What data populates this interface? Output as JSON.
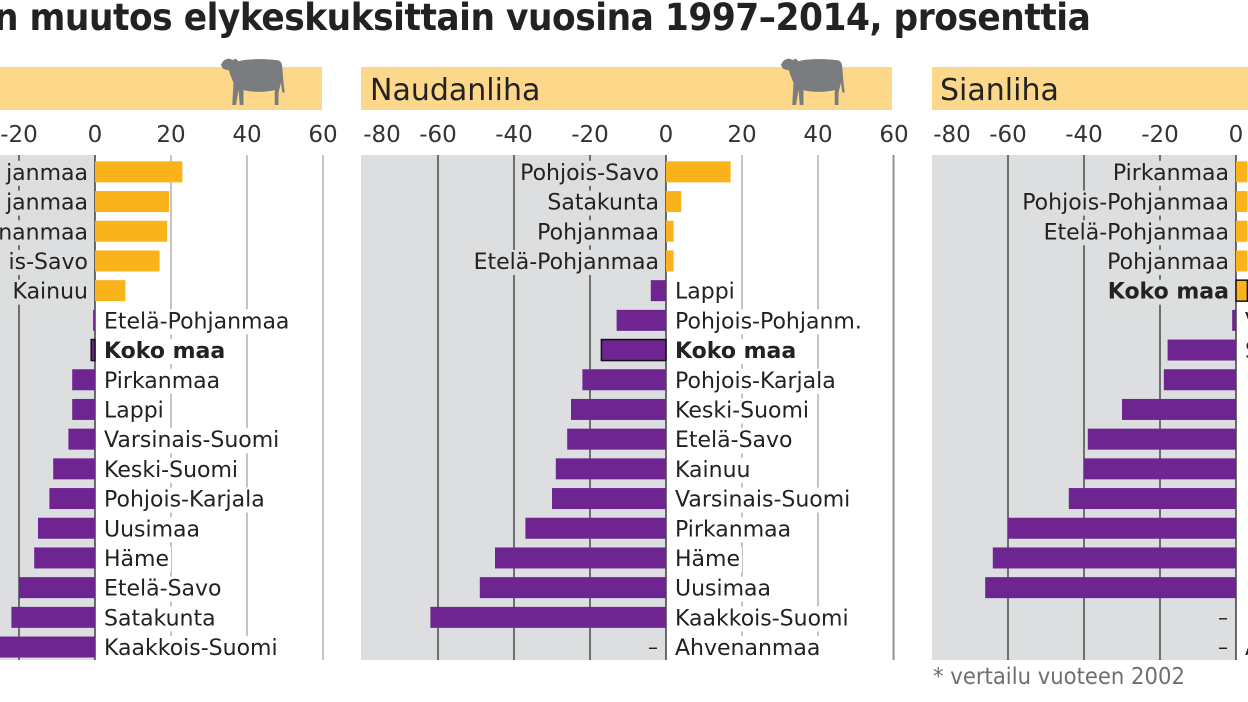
{
  "title": "n muutos elykeskuksittain vuosina 1997–2014, prosenttia",
  "footnote": "* vertailu vuoteen 2002",
  "colors": {
    "positive": "#fbb31c",
    "negative": "#6e2591",
    "panel_gray": "#dcdedf",
    "header_band": "#fdd88b",
    "animal_icon": "#7a7d80",
    "gridline": "#333333",
    "text": "#222222"
  },
  "chart_data": [
    {
      "type": "bar",
      "orientation": "horizontal",
      "title": "",
      "icon": "cow-icon",
      "xlabel": "",
      "ylabel": "",
      "xlim": [
        -25,
        60
      ],
      "ticks": [
        -20,
        0,
        20,
        40,
        60
      ],
      "tick_labels": [
        "-20",
        "0",
        "20",
        "40",
        "60"
      ],
      "grid": true,
      "categories": [
        "…janmaa",
        "…janmaa",
        "…nanmaa",
        "…is-Savo",
        "Kainuu",
        "Etelä-Pohjanmaa",
        "Koko maa",
        "Pirkanmaa",
        "Lappi",
        "Varsinais-Suomi",
        "Keski-Suomi",
        "Pohjois-Karjala",
        "Uusimaa",
        "Häme",
        "Etelä-Savo",
        "Satakunta",
        "Kaakkois-Suomi"
      ],
      "labels_visible": [
        "janmaa",
        "janmaa",
        "nanmaa",
        "is-Savo",
        "Kainuu",
        "Etelä-Pohjanmaa",
        "Koko maa",
        "Pirkanmaa",
        "Lappi",
        "Varsinais-Suomi",
        "Keski-Suomi",
        "Pohjois-Karjala",
        "Uusimaa",
        "Häme",
        "Etelä-Savo",
        "Satakunta",
        "Kaakkois-Suomi"
      ],
      "values": [
        23,
        19.5,
        19,
        17,
        8,
        -0.5,
        -1,
        -6,
        -6,
        -7,
        -11,
        -12,
        -15,
        -16,
        -20,
        -22,
        -26
      ],
      "highlight": "Koko maa"
    },
    {
      "type": "bar",
      "orientation": "horizontal",
      "title": "Naudanliha",
      "icon": "bull-icon",
      "xlabel": "",
      "ylabel": "",
      "xlim": [
        -80,
        60
      ],
      "ticks": [
        -80,
        -60,
        -40,
        -20,
        0,
        20,
        40,
        60
      ],
      "tick_labels": [
        "-80",
        "-60",
        "-40",
        "-20",
        "0",
        "20",
        "40",
        "60"
      ],
      "grid": true,
      "categories": [
        "Pohjois-Savo",
        "Satakunta",
        "Pohjanmaa",
        "Etelä-Pohjanmaa",
        "Lappi",
        "Pohjois-Pohjanm.",
        "Koko maa",
        "Pohjois-Karjala",
        "Keski-Suomi",
        "Etelä-Savo",
        "Kainuu",
        "Varsinais-Suomi",
        "Pirkanmaa",
        "Häme",
        "Uusimaa",
        "Kaakkois-Suomi",
        "Ahvenanmaa"
      ],
      "labels_visible": [
        "Pohjois-Savo",
        "Satakunta",
        "Pohjanmaa",
        "Etelä-Pohjanmaa",
        "Lappi",
        "Pohjois-Pohjanm.",
        "Koko maa",
        "Pohjois-Karjala",
        "Keski-Suomi",
        "Etelä-Savo",
        "Kainuu",
        "Varsinais-Suomi",
        "Pirkanmaa",
        "Häme",
        "Uusimaa",
        "Kaakkois-Suomi",
        "Ahvenanmaa"
      ],
      "values": [
        17,
        4,
        2,
        2,
        -4,
        -13,
        -17,
        -22,
        -25,
        -26,
        -29,
        -30,
        -37,
        -45,
        -49,
        -62,
        null
      ],
      "missing_marker": "–",
      "highlight": "Koko maa"
    },
    {
      "type": "bar",
      "orientation": "horizontal",
      "title": "Sianliha",
      "icon": "",
      "xlabel": "",
      "ylabel": "",
      "xlim": [
        -80,
        0
      ],
      "ticks": [
        -80,
        -60,
        -40,
        -20,
        0
      ],
      "tick_labels": [
        "-80",
        "-60",
        "-40",
        "-20",
        "0"
      ],
      "grid": true,
      "categories": [
        "Pirkanmaa",
        "Pohjois-Pohjanmaa",
        "Etelä-Pohjanmaa",
        "Pohjanmaa",
        "Koko maa",
        "V…",
        "S…",
        "…",
        "…",
        "…",
        "…",
        "…",
        "…",
        "…",
        "…",
        "…",
        "A…"
      ],
      "labels_visible": [
        "Pirkanmaa",
        "Pohjois-Pohjanmaa",
        "Etelä-Pohjanmaa",
        "Pohjanmaa",
        "Koko maa",
        "V",
        "S",
        "",
        "",
        "",
        "",
        "",
        "",
        "",
        "",
        "",
        "A"
      ],
      "values": [
        3,
        3,
        3,
        3,
        3,
        -1,
        -18,
        -19,
        -30,
        -39,
        -40,
        -44,
        -60,
        -64,
        -66,
        null,
        null
      ],
      "missing_marker": "–",
      "highlight": "Koko maa"
    }
  ]
}
